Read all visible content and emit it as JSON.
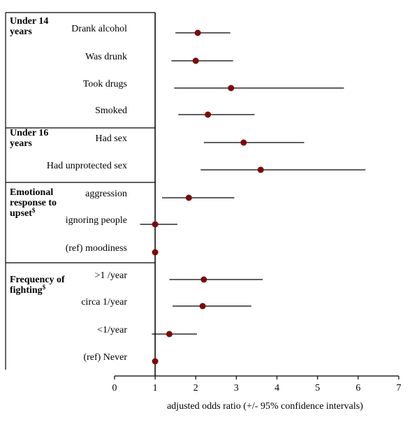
{
  "chart_data": {
    "type": "forest",
    "xlabel": "adjusted odds ratio (+/- 95% confidence intervals)",
    "xlim": [
      0,
      7
    ],
    "xticks": [
      "0",
      "1",
      "2",
      "3",
      "4",
      "5",
      "6",
      "7"
    ],
    "reference_line_x": 1,
    "colors": {
      "point": "#7a0b0b",
      "line": "#000000"
    },
    "groups": [
      {
        "title_lines": [
          "Under 14",
          "years"
        ],
        "superscript": ""
      },
      {
        "title_lines": [
          "Under 16",
          "years"
        ],
        "superscript": ""
      },
      {
        "title_lines": [
          "Emotional",
          "response to",
          "upset"
        ],
        "superscript": "$"
      },
      {
        "title_lines": [
          "Frequency of",
          "fighting"
        ],
        "superscript": "$"
      }
    ],
    "rows": [
      {
        "group": 0,
        "label": "Drank alcohol",
        "or": 2.05,
        "lo": 1.5,
        "hi": 2.85
      },
      {
        "group": 0,
        "label": "Was drunk",
        "or": 2.0,
        "lo": 1.4,
        "hi": 2.92
      },
      {
        "group": 0,
        "label": "Took drugs",
        "or": 2.87,
        "lo": 1.47,
        "hi": 5.65
      },
      {
        "group": 0,
        "label": "Smoked",
        "or": 2.3,
        "lo": 1.57,
        "hi": 3.45
      },
      {
        "group": 1,
        "label": "Had sex",
        "or": 3.18,
        "lo": 2.2,
        "hi": 4.67
      },
      {
        "group": 1,
        "label": "Had unprotected sex",
        "or": 3.6,
        "lo": 2.12,
        "hi": 6.18
      },
      {
        "group": 2,
        "label": "aggression",
        "or": 1.83,
        "lo": 1.17,
        "hi": 2.95
      },
      {
        "group": 2,
        "label": "ignoring  people",
        "or": 1.0,
        "lo": 0.63,
        "hi": 1.55
      },
      {
        "group": 2,
        "label": "(ref) moodiness",
        "or": 1.0,
        "lo": null,
        "hi": null
      },
      {
        "group": 3,
        "label": ">1 /year",
        "or": 2.2,
        "lo": 1.35,
        "hi": 3.65
      },
      {
        "group": 3,
        "label": "circa 1/year",
        "or": 2.17,
        "lo": 1.43,
        "hi": 3.37
      },
      {
        "group": 3,
        "label": "<1/year",
        "or": 1.35,
        "lo": 0.92,
        "hi": 2.03
      },
      {
        "group": 3,
        "label": "(ref) Never",
        "or": 1.0,
        "lo": null,
        "hi": null
      }
    ]
  }
}
